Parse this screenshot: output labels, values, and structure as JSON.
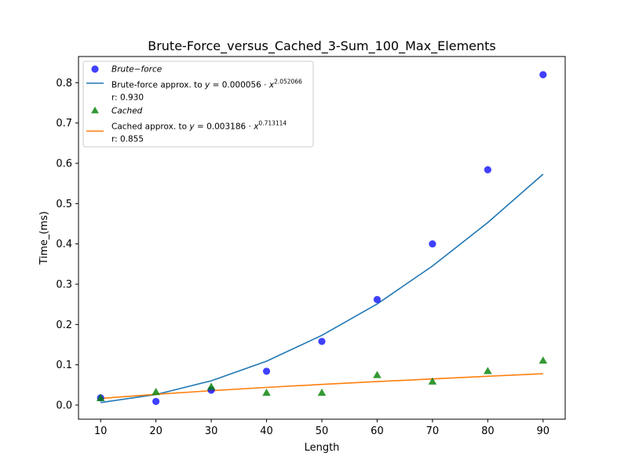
{
  "chart_data": {
    "type": "scatter",
    "title": "Brute-Force_versus_Cached_3-Sum_100_Max_Elements",
    "xlabel": "Length",
    "ylabel": "Time_(ms)",
    "xlim": [
      6,
      94
    ],
    "ylim": [
      -0.035,
      0.865
    ],
    "xticks": [
      10,
      20,
      30,
      40,
      50,
      60,
      70,
      80,
      90
    ],
    "yticks": [
      0.0,
      0.1,
      0.2,
      0.3,
      0.4,
      0.5,
      0.6,
      0.7,
      0.8
    ],
    "ytick_labels": [
      "0.0",
      "0.1",
      "0.2",
      "0.3",
      "0.4",
      "0.5",
      "0.6",
      "0.7",
      "0.8"
    ],
    "grid": false,
    "legend_placement": "upper-left",
    "x": [
      10,
      20,
      30,
      40,
      50,
      60,
      70,
      80,
      90
    ],
    "series": [
      {
        "name": "Brute−force",
        "kind": "scatter",
        "marker": "circle",
        "color": "#0000ff",
        "values": [
          0.018,
          0.009,
          0.037,
          0.084,
          0.158,
          0.262,
          0.4,
          0.584,
          0.82
        ]
      },
      {
        "name": "Brute-force approx. to y = 0.000056 · x^2.052066",
        "kind": "line",
        "color": "#1f77b4",
        "stat_label": "r: 0.930",
        "values": [
          0.0063,
          0.0261,
          0.0603,
          0.109,
          0.173,
          0.251,
          0.345,
          0.453,
          0.573
        ]
      },
      {
        "name": "Cached",
        "kind": "scatter",
        "marker": "triangle",
        "color": "#008000",
        "values": [
          0.017,
          0.032,
          0.045,
          0.03,
          0.03,
          0.074,
          0.058,
          0.084,
          0.11
        ]
      },
      {
        "name": "Cached approx. to y = 0.003186 · x^0.713114",
        "kind": "line",
        "color": "#ff7f0e",
        "stat_label": "r: 0.855",
        "values": [
          0.0164,
          0.0268,
          0.0357,
          0.0438,
          0.0513,
          0.0583,
          0.065,
          0.0715,
          0.0777
        ]
      }
    ],
    "legend": [
      {
        "label_parts": [
          "Brute−force"
        ],
        "italic": true
      },
      {
        "label_parts": [
          "Brute-force approx. to ",
          "y",
          " = 0.000056 · ",
          "x",
          "2.052066"
        ]
      },
      {
        "label_parts": [
          "r: 0.930"
        ]
      },
      {
        "label_parts": [
          "Cached"
        ],
        "italic": true
      },
      {
        "label_parts": [
          "Cached approx. to ",
          "y",
          " = 0.003186 · ",
          "x",
          "0.713114"
        ]
      },
      {
        "label_parts": [
          "r: 0.855"
        ]
      }
    ]
  }
}
